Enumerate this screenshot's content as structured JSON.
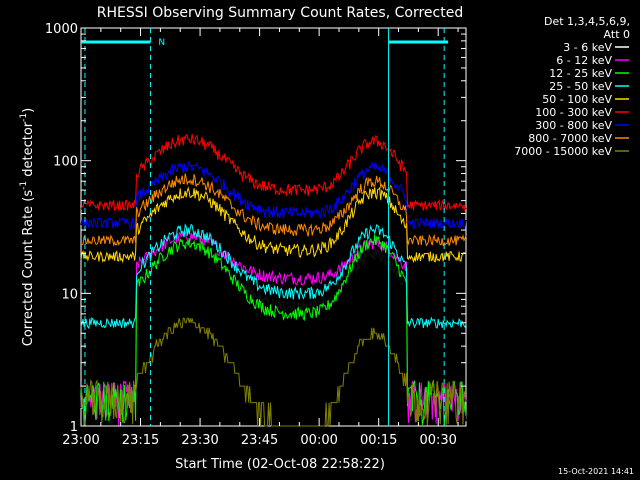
{
  "chart_data": {
    "type": "line",
    "title": "RHESSI Observing Summary Count Rates, Corrected",
    "xlabel": "Start Time (02-Oct-08 22:58:22)",
    "ylabel_main": "Corrected Count Rate (s",
    "ylabel_sup1": "-1",
    "ylabel_mid": " detector",
    "ylabel_sup2": "-1",
    "ylabel_end": ")",
    "yscale": "log",
    "ylim": [
      1,
      1000
    ],
    "xlim_minutes": [
      0,
      97
    ],
    "x_tick_labels": [
      "23:00",
      "23:15",
      "23:30",
      "23:45",
      "00:00",
      "00:15",
      "00:30"
    ],
    "x_tick_minutes": [
      0,
      15,
      30,
      45,
      60,
      75,
      90
    ],
    "y_tick_labels": [
      "1",
      "10",
      "100",
      "1000"
    ],
    "y_tick_values": [
      1,
      10,
      100,
      1000
    ],
    "legend_header": [
      "Det 1,3,4,5,6,9,",
      "Att 0"
    ],
    "footer_timestamp": "15-Oct-2021 14:41",
    "night_marker": "N",
    "series": [
      {
        "name": "3 - 6 keV",
        "color": "#000000",
        "base": 8,
        "peak1": 22,
        "peak2": 20,
        "night_level": 1
      },
      {
        "name": "6 - 12 keV",
        "color": "#ff00ff",
        "base": 13,
        "peak1": 27,
        "peak2": 24,
        "night_level": 1
      },
      {
        "name": "12 - 25 keV",
        "color": "#00ff00",
        "base": 7,
        "peak1": 24,
        "peak2": 25,
        "night_level": 1.5
      },
      {
        "name": "25 - 50 keV",
        "color": "#00ffff",
        "base": 10,
        "peak1": 30,
        "peak2": 30,
        "night_level": 6
      },
      {
        "name": "50 - 100 keV",
        "color": "#ffd700",
        "base": 21,
        "peak1": 58,
        "peak2": 58,
        "night_level": 19
      },
      {
        "name": "100 - 300 keV",
        "color": "#ff0000",
        "base": 60,
        "peak1": 145,
        "peak2": 140,
        "night_level": 46
      },
      {
        "name": "300 - 800 keV",
        "color": "#0000ff",
        "base": 40,
        "peak1": 90,
        "peak2": 88,
        "night_level": 34
      },
      {
        "name": "800 - 7000 keV",
        "color": "#ff8800",
        "base": 30,
        "peak1": 73,
        "peak2": 70,
        "night_level": 25
      },
      {
        "name": "7000 - 15000 keV",
        "color": "#808000",
        "base": 1,
        "peak1": 6,
        "peak2": 5,
        "night_level": 1
      }
    ]
  }
}
